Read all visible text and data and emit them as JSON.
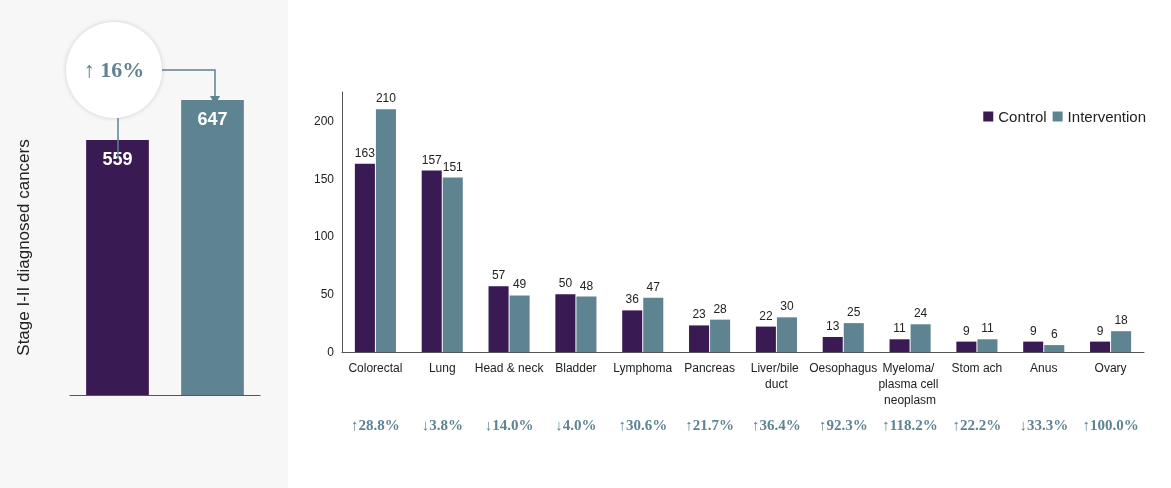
{
  "chart_data": [
    {
      "type": "bar",
      "ylabel": "Stage I-II diagnosed cancers",
      "categories": [
        null,
        null
      ],
      "values": [
        559,
        647
      ],
      "colors": [
        "#3a1a52",
        "#5e8491"
      ],
      "data_labels": true,
      "annotations": [
        "↑ 16%"
      ]
    },
    {
      "type": "bar",
      "categories": [
        "Colorectal",
        "Lung",
        "Head & neck",
        "Bladder",
        "Lymphoma",
        "Pancreas",
        "Liver/bile duct",
        "Oesophagus",
        "Myeloma/ plasma cell neoplasm",
        "Stom ach",
        "Anus",
        "Ovary"
      ],
      "series": [
        {
          "name": "Control",
          "color": "#3a1a52",
          "values": [
            163,
            157,
            57,
            50,
            36,
            23,
            22,
            13,
            11,
            9,
            9,
            9
          ]
        },
        {
          "name": "Intervention",
          "color": "#5e8491",
          "values": [
            210,
            151,
            49,
            48,
            47,
            28,
            30,
            25,
            24,
            11,
            6,
            18
          ]
        }
      ],
      "ylim": [
        0,
        225
      ],
      "yticks": [
        0,
        50,
        100,
        150,
        200
      ],
      "data_labels": true,
      "legend": "top right",
      "grid": false,
      "annotations": [
        "↑28.8%",
        "↓3.8%",
        "↓14.0%",
        "↓4.0%",
        "↑30.6%",
        "↑21.7%",
        "↑36.4%",
        "↑92.3%",
        "↑118.2%",
        "↑22.2%",
        "↓33.3%",
        "↑100.0%"
      ]
    }
  ]
}
